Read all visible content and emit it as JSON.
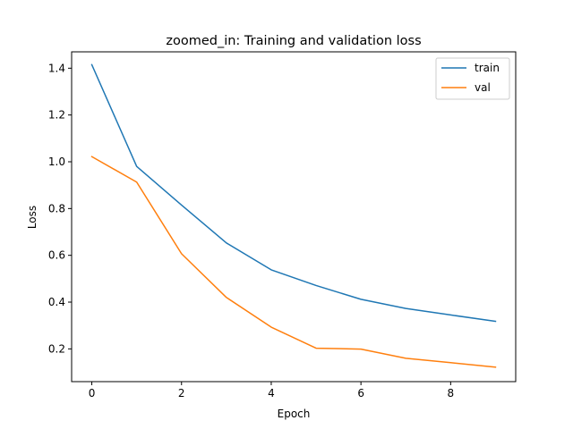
{
  "chart_data": {
    "type": "line",
    "title": "zoomed_in: Training and validation loss",
    "xlabel": "Epoch",
    "ylabel": "Loss",
    "x": [
      0,
      1,
      2,
      3,
      4,
      5,
      6,
      7,
      8,
      9
    ],
    "xlim": [
      -0.45,
      9.45
    ],
    "ylim": [
      0.06,
      1.47
    ],
    "xticks": [
      0,
      2,
      4,
      6,
      8
    ],
    "yticks": [
      0.2,
      0.4,
      0.6,
      0.8,
      1.0,
      1.2,
      1.4
    ],
    "ytick_labels": [
      "0.2",
      "0.4",
      "0.6",
      "0.8",
      "1.0",
      "1.2",
      "1.4"
    ],
    "grid": false,
    "legend_position": "top-right",
    "series": [
      {
        "name": "train",
        "color": "#1f77b4",
        "values": [
          1.415,
          0.98,
          0.815,
          0.653,
          0.538,
          0.471,
          0.412,
          0.373,
          0.345,
          0.318
        ]
      },
      {
        "name": "val",
        "color": "#ff7f0e",
        "values": [
          1.022,
          0.913,
          0.607,
          0.42,
          0.293,
          0.203,
          0.199,
          0.16,
          0.141,
          0.122
        ]
      }
    ]
  }
}
